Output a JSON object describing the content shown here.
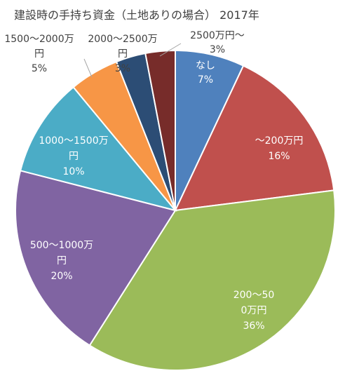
{
  "chart_data": {
    "type": "pie",
    "title": "建設時の手持ち資金（土地ありの場合） 2017年",
    "start_angle_deg": 0,
    "direction": "clockwise",
    "categories": [
      "なし",
      "～200万円",
      "200～500万円",
      "500～1000万円",
      "1000～1500万円",
      "1500～2000万円",
      "2000～2500万円",
      "2500万円～"
    ],
    "values": [
      7,
      16,
      36,
      20,
      10,
      5,
      3,
      3
    ],
    "percent_labels": [
      "7%",
      "16%",
      "36%",
      "20%",
      "10%",
      "5%",
      "3%",
      "3%"
    ],
    "colors": [
      "#4f81bd",
      "#c0504d",
      "#9bbb59",
      "#8064a2",
      "#4bacc6",
      "#f79646",
      "#2c4d75",
      "#772c2a"
    ]
  }
}
